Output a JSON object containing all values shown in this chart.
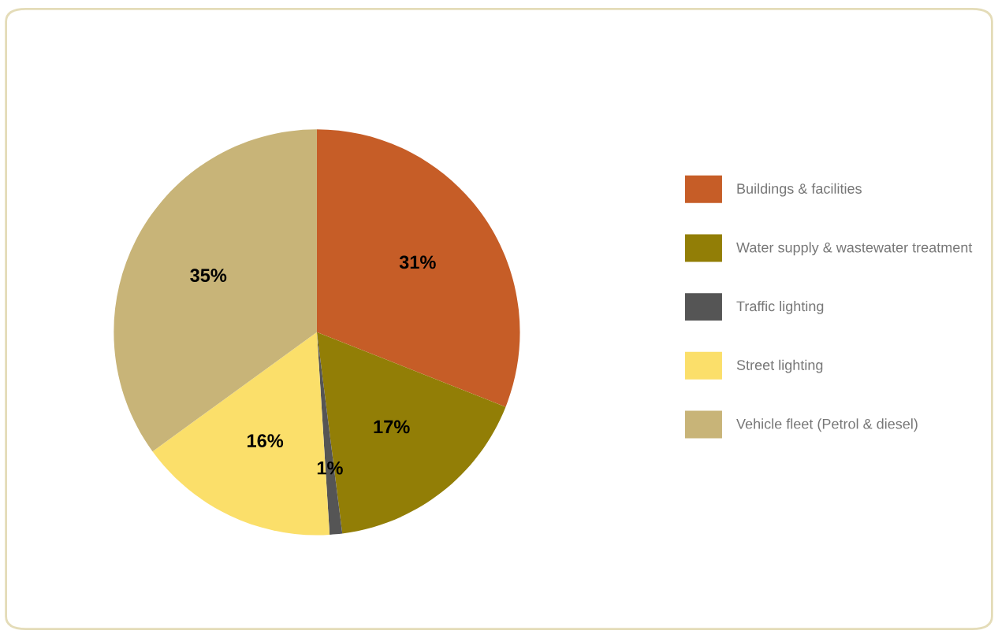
{
  "chart_data": {
    "type": "pie",
    "categories": [
      "Buildings & facilities",
      "Water supply & wastewater treatment",
      "Traffic lighting",
      "Street lighting",
      "Vehicle fleet (Petrol & diesel)"
    ],
    "values": [
      31,
      17,
      1,
      16,
      35
    ],
    "colors": [
      "#c65d27",
      "#927e06",
      "#555555",
      "#fbdf6a",
      "#c8b478"
    ],
    "value_labels": [
      "31%",
      "17%",
      "1%",
      "16%",
      "35%"
    ],
    "legend": "right"
  }
}
